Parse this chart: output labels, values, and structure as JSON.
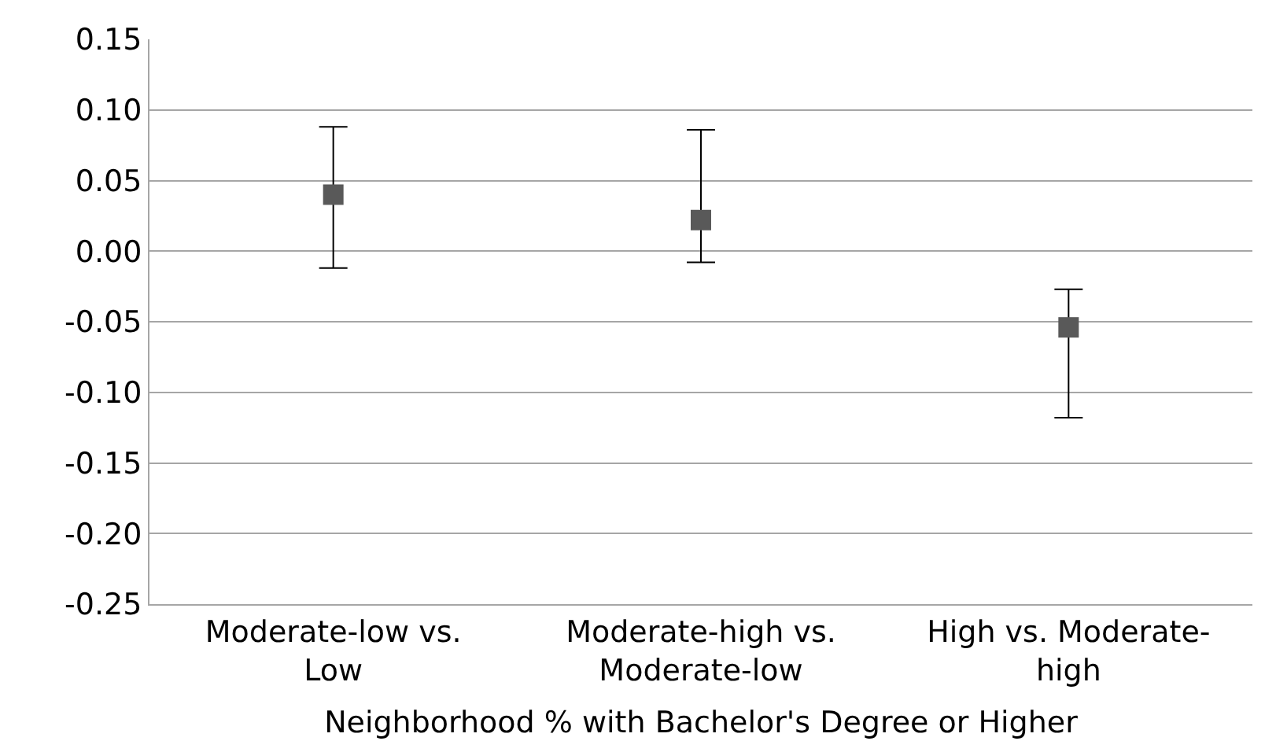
{
  "chart_data": {
    "type": "scatter",
    "xlabel": "Neighborhood % with Bachelor's Degree or Higher",
    "categories": [
      "Moderate-low vs. Low",
      "Moderate-high vs. Moderate-low",
      "High vs. Moderate-high"
    ],
    "series": [
      {
        "color": "#595959",
        "values": [
          0.04,
          0.022,
          -0.054
        ],
        "errors": [
          [
            -0.012,
            0.088
          ],
          [
            -0.008,
            0.086
          ],
          [
            -0.118,
            -0.027
          ]
        ]
      }
    ],
    "ylim": [
      -0.25,
      0.15
    ],
    "yticks": [
      {
        "value": -0.25,
        "label": "-0.25"
      },
      {
        "value": -0.2,
        "label": "-0.20"
      },
      {
        "value": -0.15,
        "label": "-0.15"
      },
      {
        "value": -0.1,
        "label": "-0.10"
      },
      {
        "value": -0.05,
        "label": "-0.05"
      },
      {
        "value": 0,
        "label": "0.00"
      },
      {
        "value": 0.05,
        "label": "0.05"
      },
      {
        "value": 0.1,
        "label": "0.10"
      },
      {
        "value": 0.15,
        "label": "0.15"
      }
    ],
    "grid": "y",
    "legend": false,
    "marker": "square"
  }
}
